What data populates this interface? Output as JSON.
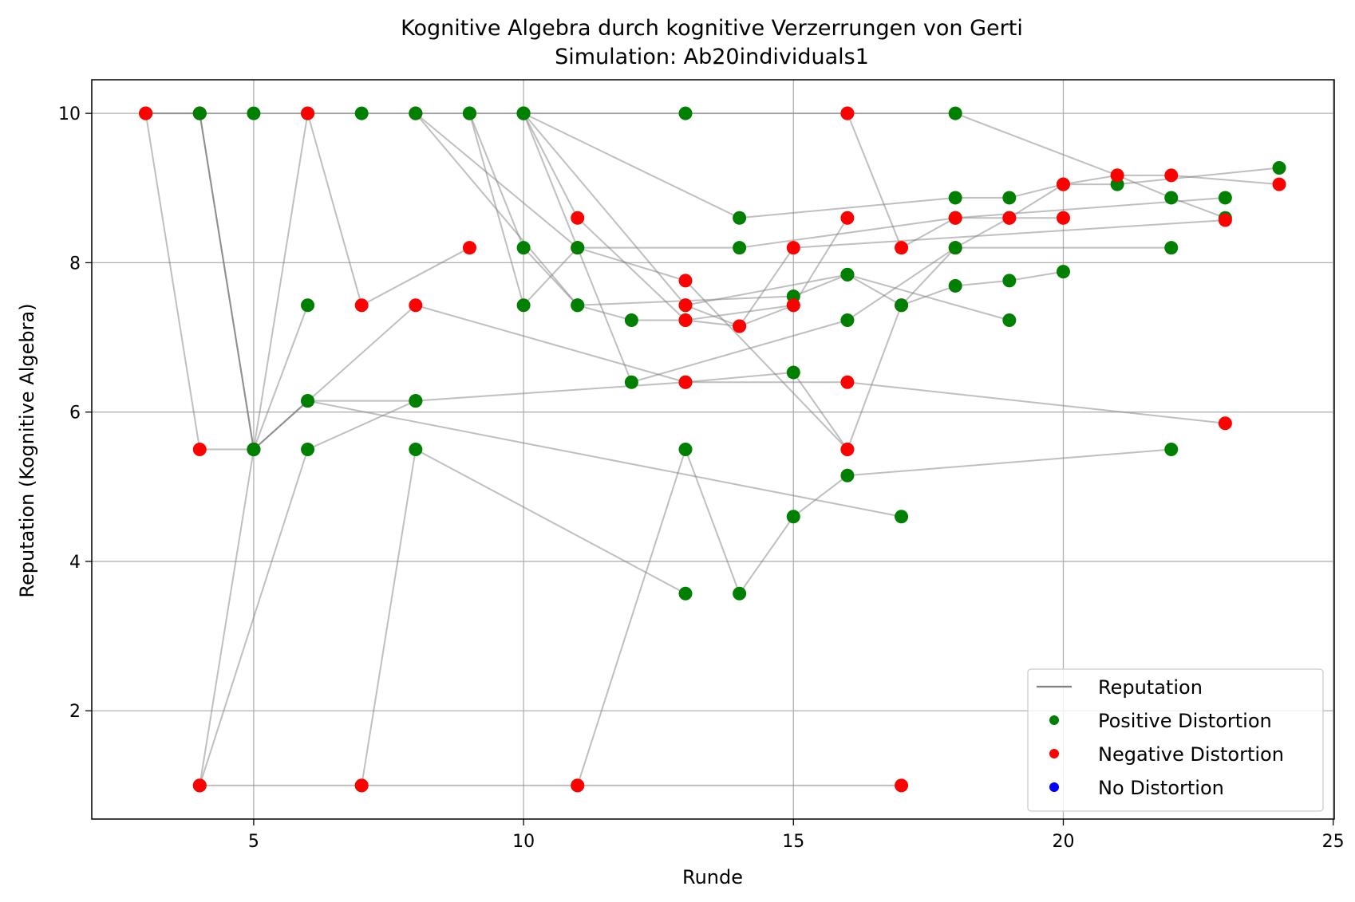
{
  "chart_data": {
    "type": "scatter",
    "title": "Kognitive Algebra durch kognitive Verzerrungen von Gerti",
    "subtitle": "Simulation: Ab20individuals1",
    "xlabel": "Runde",
    "ylabel": "Reputation (Kognitive Algebra)",
    "xlim": [
      2,
      25
    ],
    "ylim": [
      0.55,
      10.45
    ],
    "xticks": [
      5,
      10,
      15,
      20,
      25
    ],
    "yticks": [
      2,
      4,
      6,
      8,
      10
    ],
    "grid": true,
    "legend_position": "lower-right",
    "legend": [
      {
        "label": "Reputation",
        "kind": "line",
        "color": "#808080"
      },
      {
        "label": "Positive Distortion",
        "kind": "marker",
        "color": "#008000"
      },
      {
        "label": "Negative Distortion",
        "kind": "marker",
        "color": "#ff0000"
      },
      {
        "label": "No Distortion",
        "kind": "marker",
        "color": "#0000ff"
      }
    ],
    "colors": {
      "positive": "#008000",
      "negative": "#ff0000",
      "line": "#808080"
    },
    "series": [
      {
        "color": "positive",
        "points": [
          [
            3,
            10
          ],
          [
            4,
            10
          ],
          [
            5,
            10
          ],
          [
            6,
            10
          ],
          [
            7,
            10
          ],
          [
            8,
            10
          ],
          [
            9,
            10
          ],
          [
            10,
            10
          ],
          [
            13,
            10
          ],
          [
            16,
            10
          ],
          [
            18,
            10
          ],
          [
            21,
            9.17
          ],
          [
            22,
            8.87
          ],
          [
            23,
            8.6
          ]
        ]
      },
      {
        "color": "positive",
        "points": [
          [
            3,
            10
          ],
          [
            4,
            10
          ],
          [
            5,
            5.5
          ],
          [
            6,
            6.15
          ],
          [
            8,
            6.15
          ],
          [
            13,
            6.4
          ],
          [
            15,
            6.53
          ],
          [
            16,
            5.5
          ]
        ]
      },
      {
        "color": "negative",
        "points": [
          [
            3,
            10
          ],
          [
            4,
            5.5
          ],
          [
            5,
            5.5
          ],
          [
            6,
            10
          ],
          [
            7,
            7.43
          ],
          [
            9,
            8.2
          ]
        ]
      },
      {
        "color": "negative",
        "points": [
          [
            4,
            10
          ],
          [
            5,
            5.5
          ],
          [
            8,
            7.43
          ],
          [
            13,
            6.4
          ],
          [
            16,
            6.4
          ],
          [
            23,
            5.85
          ]
        ]
      },
      {
        "color": "positive",
        "points": [
          [
            4,
            10
          ],
          [
            5,
            5.5
          ],
          [
            6,
            7.43
          ]
        ]
      },
      {
        "color": "positive",
        "points": [
          [
            4,
            1
          ],
          [
            5,
            5.5
          ],
          [
            6,
            6.15
          ],
          [
            17,
            4.6
          ]
        ]
      },
      {
        "color": "positive",
        "points": [
          [
            4,
            1
          ],
          [
            6,
            5.5
          ],
          [
            8,
            6.15
          ]
        ]
      },
      {
        "color": "positive",
        "points": [
          [
            7,
            1
          ],
          [
            8,
            5.5
          ],
          [
            13,
            3.57
          ]
        ]
      },
      {
        "color": "positive",
        "points": [
          [
            11,
            1
          ],
          [
            13,
            5.5
          ],
          [
            14,
            3.57
          ],
          [
            15,
            4.6
          ],
          [
            16,
            5.15
          ],
          [
            22,
            5.5
          ]
        ]
      },
      {
        "color": "negative",
        "points": [
          [
            8,
            10
          ],
          [
            11,
            8.2
          ],
          [
            13,
            7.76
          ],
          [
            16,
            5.5
          ],
          [
            17,
            7.43
          ],
          [
            18,
            8.2
          ],
          [
            19,
            8.6
          ],
          [
            20,
            8.6
          ]
        ]
      },
      {
        "color": "positive",
        "points": [
          [
            8,
            10
          ],
          [
            11,
            7.43
          ],
          [
            12,
            7.23
          ],
          [
            13,
            7.23
          ],
          [
            15,
            7.43
          ]
        ]
      },
      {
        "color": "positive",
        "points": [
          [
            9,
            10
          ],
          [
            10,
            8.2
          ],
          [
            11,
            7.43
          ],
          [
            15,
            7.55
          ],
          [
            16,
            7.84
          ],
          [
            17,
            7.43
          ],
          [
            18,
            7.69
          ],
          [
            19,
            7.76
          ],
          [
            20,
            7.88
          ]
        ]
      },
      {
        "color": "positive",
        "points": [
          [
            9,
            10
          ],
          [
            10,
            7.43
          ],
          [
            11,
            8.2
          ],
          [
            14,
            8.2
          ],
          [
            18,
            8.6
          ],
          [
            23,
            8.87
          ]
        ]
      },
      {
        "color": "negative",
        "points": [
          [
            10,
            10
          ],
          [
            11,
            8.6
          ],
          [
            13,
            7.23
          ],
          [
            14,
            7.15
          ],
          [
            15,
            7.43
          ],
          [
            16,
            8.6
          ]
        ]
      },
      {
        "color": "positive",
        "points": [
          [
            10,
            10
          ],
          [
            13,
            7.43
          ],
          [
            16,
            7.84
          ],
          [
            19,
            7.23
          ]
        ]
      },
      {
        "color": "positive",
        "points": [
          [
            10,
            10
          ],
          [
            14,
            8.6
          ],
          [
            18,
            8.87
          ],
          [
            19,
            8.87
          ],
          [
            20,
            9.05
          ],
          [
            21,
            9.05
          ],
          [
            24,
            9.27
          ]
        ]
      },
      {
        "color": "positive",
        "points": [
          [
            10,
            10
          ],
          [
            12,
            6.4
          ],
          [
            16,
            7.23
          ],
          [
            18,
            8.2
          ],
          [
            22,
            8.2
          ]
        ]
      },
      {
        "color": "negative",
        "points": [
          [
            16,
            10
          ],
          [
            17,
            8.2
          ],
          [
            18,
            8.6
          ],
          [
            19,
            8.6
          ],
          [
            20,
            9.05
          ],
          [
            21,
            9.17
          ],
          [
            22,
            9.17
          ],
          [
            24,
            9.05
          ]
        ]
      },
      {
        "color": "negative",
        "points": [
          [
            13,
            7.43
          ],
          [
            14,
            7.15
          ],
          [
            15,
            8.2
          ],
          [
            23,
            8.57
          ]
        ]
      },
      {
        "color": "negative",
        "points": [
          [
            4,
            1
          ],
          [
            7,
            1
          ],
          [
            11,
            1
          ],
          [
            17,
            1
          ]
        ]
      }
    ]
  }
}
